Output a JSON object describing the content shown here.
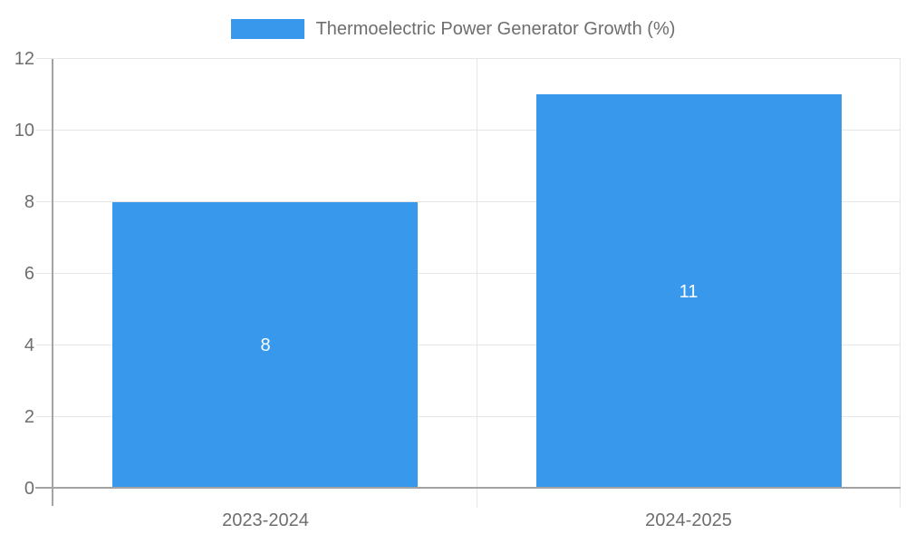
{
  "chart_data": {
    "type": "bar",
    "title": "Thermoelectric Power Generator Growth (%)",
    "categories": [
      "2023-2024",
      "2024-2025"
    ],
    "values": [
      8,
      11
    ],
    "data_labels": [
      "8",
      "11"
    ],
    "y_ticks": [
      "0",
      "2",
      "4",
      "6",
      "8",
      "10",
      "12"
    ],
    "ylim": [
      0,
      12
    ],
    "ytick_step": 2,
    "xlabel": "",
    "ylabel": "",
    "grid": true,
    "legend_position": "top-center",
    "colors": {
      "bar": "#3899ec",
      "gridline": "#e6e6e6",
      "axis_line": "#a3a3a3",
      "text": "#6e6e6e",
      "data_label": "#ffffff",
      "background": "#ffffff"
    }
  }
}
